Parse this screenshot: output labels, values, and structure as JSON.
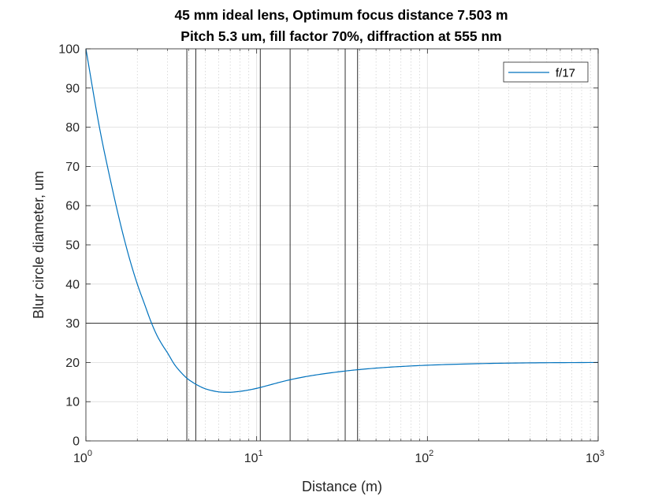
{
  "chart_data": {
    "type": "line",
    "title_lines": [
      "45 mm ideal lens, Optimum focus distance 7.503 m",
      "Pitch 5.3 um, fill factor 70%, diffraction at 555 nm"
    ],
    "xlabel": "Distance (m)",
    "ylabel": "Blur circle diameter, um",
    "xscale": "log",
    "xlim": [
      1,
      1000
    ],
    "ylim": [
      0,
      100
    ],
    "x_ticks": [
      {
        "base": "10",
        "exp": "0",
        "value": 1
      },
      {
        "base": "10",
        "exp": "1",
        "value": 10
      },
      {
        "base": "10",
        "exp": "2",
        "value": 100
      },
      {
        "base": "10",
        "exp": "3",
        "value": 1000
      }
    ],
    "y_ticks": [
      "0",
      "10",
      "20",
      "30",
      "40",
      "50",
      "60",
      "70",
      "80",
      "90",
      "100"
    ],
    "grid": true,
    "minor_grid": true,
    "legend_position": "top-right",
    "series": [
      {
        "name": "f/17",
        "color": "#0072BD",
        "x": [
          1.0,
          1.2,
          1.4,
          1.6,
          1.8,
          2.0,
          2.2,
          2.4,
          2.6,
          2.8,
          3.0,
          3.3,
          3.6,
          3.9,
          4.2,
          4.6,
          5.0,
          5.5,
          6.0,
          6.5,
          7.0,
          7.5,
          8.5,
          10.0,
          12.0,
          15.0,
          20.0,
          30.0,
          40.0,
          60.0,
          100.0,
          200.0,
          400.0,
          1000.0
        ],
        "y": [
          100.0,
          80.0,
          66.0,
          55.0,
          46.5,
          40.0,
          35.0,
          30.5,
          27.0,
          24.5,
          22.5,
          19.5,
          17.5,
          16.0,
          15.0,
          14.0,
          13.3,
          12.8,
          12.5,
          12.4,
          12.4,
          12.5,
          12.8,
          13.4,
          14.3,
          15.4,
          16.5,
          17.6,
          18.2,
          18.8,
          19.3,
          19.7,
          19.9,
          20.0
        ]
      }
    ],
    "reference_lines": {
      "x": [
        3.9,
        4.4,
        10.5,
        15.7,
        33.0,
        39.0
      ],
      "y": [
        30
      ]
    }
  }
}
